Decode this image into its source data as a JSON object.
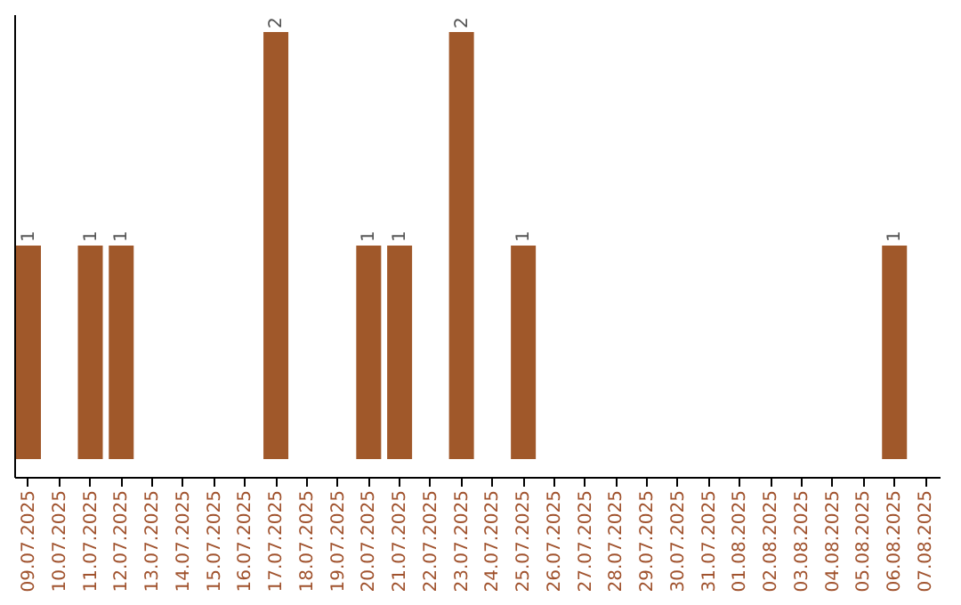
{
  "chart_data": {
    "type": "bar",
    "categories": [
      "09.07.2025",
      "10.07.2025",
      "11.07.2025",
      "12.07.2025",
      "13.07.2025",
      "14.07.2025",
      "15.07.2025",
      "16.07.2025",
      "17.07.2025",
      "18.07.2025",
      "19.07.2025",
      "20.07.2025",
      "21.07.2025",
      "22.07.2025",
      "23.07.2025",
      "24.07.2025",
      "25.07.2025",
      "26.07.2025",
      "27.07.2025",
      "28.07.2025",
      "29.07.2025",
      "30.07.2025",
      "31.07.2025",
      "01.08.2025",
      "02.08.2025",
      "03.08.2025",
      "04.08.2025",
      "05.08.2025",
      "06.08.2025",
      "07.08.2025"
    ],
    "values": [
      1,
      0,
      1,
      1,
      0,
      0,
      0,
      0,
      2,
      0,
      0,
      1,
      1,
      0,
      2,
      0,
      1,
      0,
      0,
      0,
      0,
      0,
      0,
      0,
      0,
      0,
      0,
      0,
      1,
      0
    ],
    "value_labels": [
      "1",
      null,
      "1",
      "1",
      null,
      null,
      null,
      null,
      "2",
      null,
      null,
      "1",
      "1",
      null,
      "2",
      null,
      "1",
      null,
      null,
      null,
      null,
      null,
      null,
      null,
      null,
      null,
      null,
      null,
      "1",
      null
    ],
    "color": "#a0582a",
    "tick_labels": "x"
  }
}
